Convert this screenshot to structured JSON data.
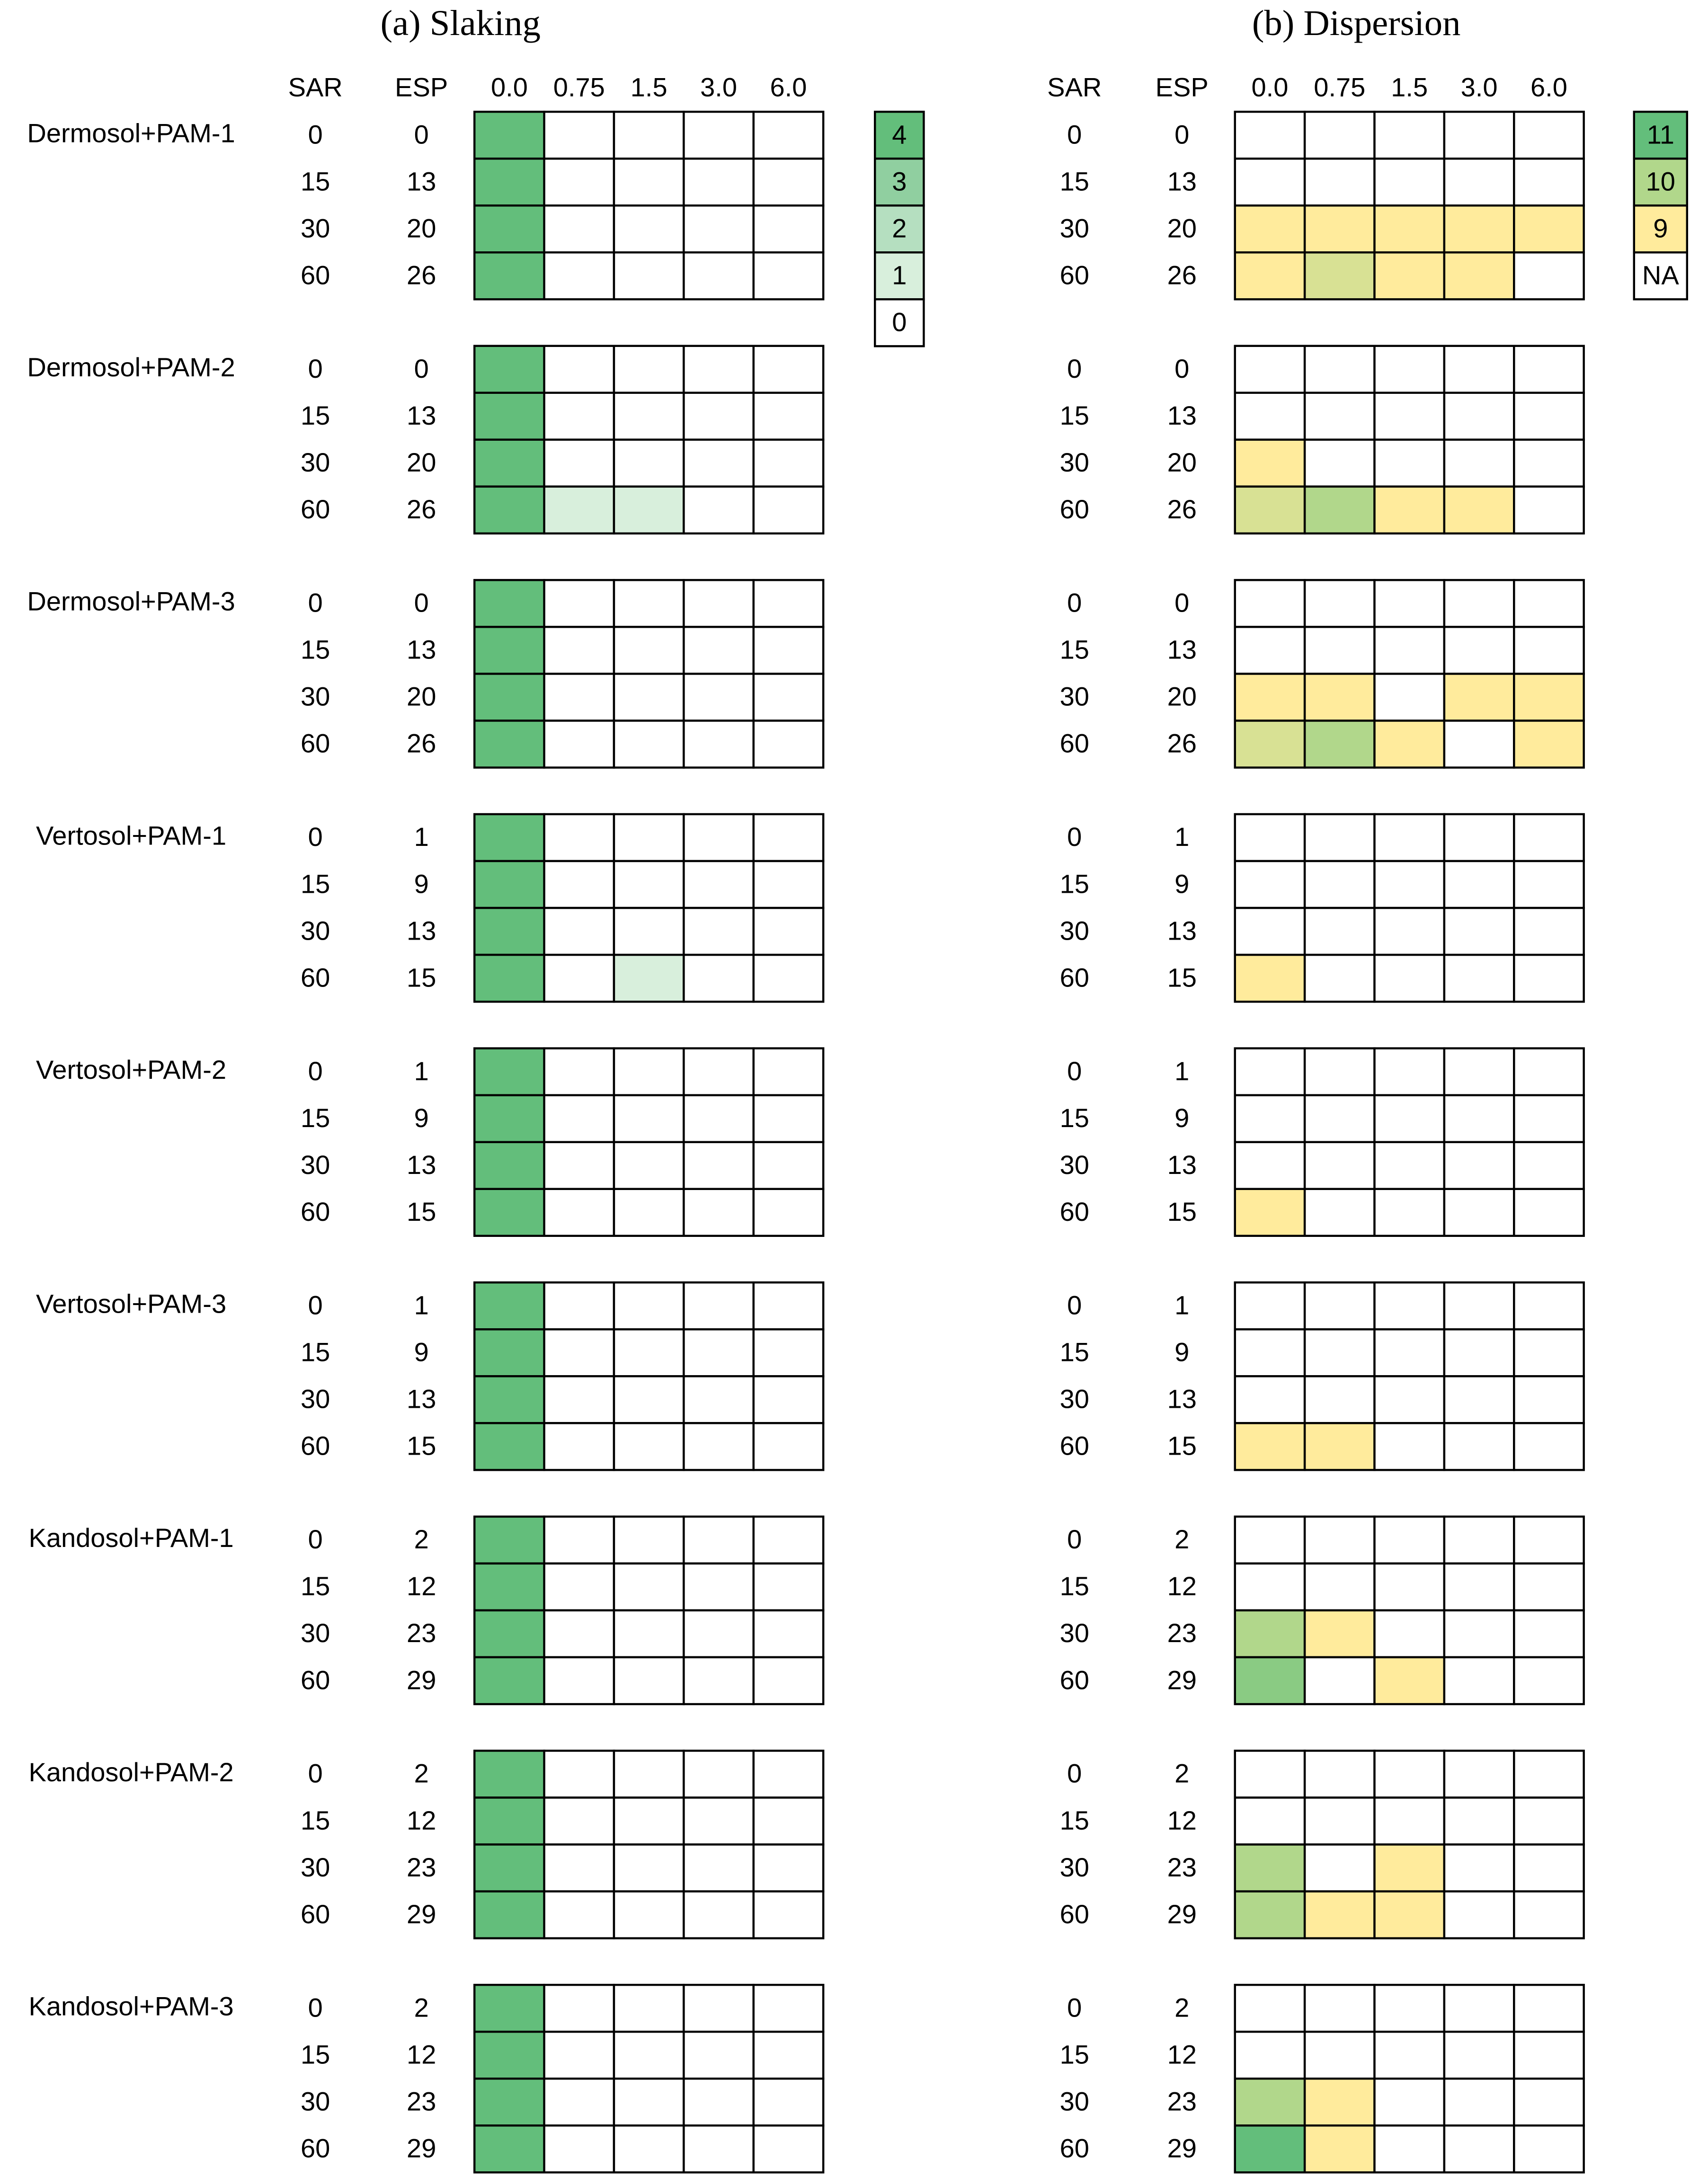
{
  "chart_data": [
    {
      "type": "heatmap",
      "title": "(a) Slaking",
      "row_headers": [
        "SAR",
        "ESP"
      ],
      "categories": [
        "0.0",
        "0.75",
        "1.5",
        "3.0",
        "6.0"
      ],
      "legend": [
        {
          "value": 4,
          "color": "#63be7b"
        },
        {
          "value": 3,
          "color": "#90cfa0"
        },
        {
          "value": 2,
          "color": "#b5dfc0"
        },
        {
          "value": 1,
          "color": "#d8efdc"
        },
        {
          "value": 0,
          "color": "#ffffff"
        }
      ],
      "groups": [
        {
          "name": "Dermosol+PAM-1",
          "sar": [
            0,
            15,
            30,
            60
          ],
          "esp": [
            0,
            13,
            20,
            26
          ],
          "values": [
            [
              4,
              0,
              0,
              0,
              0
            ],
            [
              4,
              0,
              0,
              0,
              0
            ],
            [
              4,
              0,
              0,
              0,
              0
            ],
            [
              4,
              0,
              0,
              0,
              0
            ]
          ]
        },
        {
          "name": "Dermosol+PAM-2",
          "sar": [
            0,
            15,
            30,
            60
          ],
          "esp": [
            0,
            13,
            20,
            26
          ],
          "values": [
            [
              4,
              0,
              0,
              0,
              0
            ],
            [
              4,
              0,
              0,
              0,
              0
            ],
            [
              4,
              0,
              0,
              0,
              0
            ],
            [
              4,
              1,
              1,
              0,
              0
            ]
          ]
        },
        {
          "name": "Dermosol+PAM-3",
          "sar": [
            0,
            15,
            30,
            60
          ],
          "esp": [
            0,
            13,
            20,
            26
          ],
          "values": [
            [
              4,
              0,
              0,
              0,
              0
            ],
            [
              4,
              0,
              0,
              0,
              0
            ],
            [
              4,
              0,
              0,
              0,
              0
            ],
            [
              4,
              0,
              0,
              0,
              0
            ]
          ]
        },
        {
          "name": "Vertosol+PAM-1",
          "sar": [
            0,
            15,
            30,
            60
          ],
          "esp": [
            1,
            9,
            13,
            15
          ],
          "values": [
            [
              4,
              0,
              0,
              0,
              0
            ],
            [
              4,
              0,
              0,
              0,
              0
            ],
            [
              4,
              0,
              0,
              0,
              0
            ],
            [
              4,
              0,
              1,
              0,
              0
            ]
          ]
        },
        {
          "name": "Vertosol+PAM-2",
          "sar": [
            0,
            15,
            30,
            60
          ],
          "esp": [
            1,
            9,
            13,
            15
          ],
          "values": [
            [
              4,
              0,
              0,
              0,
              0
            ],
            [
              4,
              0,
              0,
              0,
              0
            ],
            [
              4,
              0,
              0,
              0,
              0
            ],
            [
              4,
              0,
              0,
              0,
              0
            ]
          ]
        },
        {
          "name": "Vertosol+PAM-3",
          "sar": [
            0,
            15,
            30,
            60
          ],
          "esp": [
            1,
            9,
            13,
            15
          ],
          "values": [
            [
              4,
              0,
              0,
              0,
              0
            ],
            [
              4,
              0,
              0,
              0,
              0
            ],
            [
              4,
              0,
              0,
              0,
              0
            ],
            [
              4,
              0,
              0,
              0,
              0
            ]
          ]
        },
        {
          "name": "Kandosol+PAM-1",
          "sar": [
            0,
            15,
            30,
            60
          ],
          "esp": [
            2,
            12,
            23,
            29
          ],
          "values": [
            [
              4,
              0,
              0,
              0,
              0
            ],
            [
              4,
              0,
              0,
              0,
              0
            ],
            [
              4,
              0,
              0,
              0,
              0
            ],
            [
              4,
              0,
              0,
              0,
              0
            ]
          ]
        },
        {
          "name": "Kandosol+PAM-2",
          "sar": [
            0,
            15,
            30,
            60
          ],
          "esp": [
            2,
            12,
            23,
            29
          ],
          "values": [
            [
              4,
              0,
              0,
              0,
              0
            ],
            [
              4,
              0,
              0,
              0,
              0
            ],
            [
              4,
              0,
              0,
              0,
              0
            ],
            [
              4,
              0,
              0,
              0,
              0
            ]
          ]
        },
        {
          "name": "Kandosol+PAM-3",
          "sar": [
            0,
            15,
            30,
            60
          ],
          "esp": [
            2,
            12,
            23,
            29
          ],
          "values": [
            [
              4,
              0,
              0,
              0,
              0
            ],
            [
              4,
              0,
              0,
              0,
              0
            ],
            [
              4,
              0,
              0,
              0,
              0
            ],
            [
              4,
              0,
              0,
              0,
              0
            ]
          ]
        }
      ]
    },
    {
      "type": "heatmap",
      "title": "(b) Dispersion",
      "row_headers": [
        "SAR",
        "ESP"
      ],
      "categories": [
        "0.0",
        "0.75",
        "1.5",
        "3.0",
        "6.0"
      ],
      "legend": [
        {
          "value": 11,
          "color": "#63be7b"
        },
        {
          "value": 10,
          "color": "#b1d78b"
        },
        {
          "value": 9,
          "color": "#ffeb9c"
        },
        {
          "label": "NA",
          "color": "#ffffff"
        }
      ],
      "groups": [
        {
          "sar": [
            0,
            15,
            30,
            60
          ],
          "esp": [
            0,
            13,
            20,
            26
          ],
          "values": [
            [
              null,
              null,
              null,
              null,
              null
            ],
            [
              null,
              null,
              null,
              null,
              null
            ],
            [
              9,
              9,
              9,
              9,
              9
            ],
            [
              9,
              9.5,
              9,
              9,
              null
            ]
          ]
        },
        {
          "sar": [
            0,
            15,
            30,
            60
          ],
          "esp": [
            0,
            13,
            20,
            26
          ],
          "values": [
            [
              null,
              null,
              null,
              null,
              null
            ],
            [
              null,
              null,
              null,
              null,
              null
            ],
            [
              9,
              null,
              null,
              null,
              null
            ],
            [
              9.5,
              10,
              9,
              9,
              null
            ]
          ]
        },
        {
          "sar": [
            0,
            15,
            30,
            60
          ],
          "esp": [
            0,
            13,
            20,
            26
          ],
          "values": [
            [
              null,
              null,
              null,
              null,
              null
            ],
            [
              null,
              null,
              null,
              null,
              null
            ],
            [
              9,
              9,
              null,
              9,
              9
            ],
            [
              9.5,
              10,
              9,
              null,
              9
            ]
          ]
        },
        {
          "sar": [
            0,
            15,
            30,
            60
          ],
          "esp": [
            1,
            9,
            13,
            15
          ],
          "values": [
            [
              null,
              null,
              null,
              null,
              null
            ],
            [
              null,
              null,
              null,
              null,
              null
            ],
            [
              null,
              null,
              null,
              null,
              null
            ],
            [
              9,
              null,
              null,
              null,
              null
            ]
          ]
        },
        {
          "sar": [
            0,
            15,
            30,
            60
          ],
          "esp": [
            1,
            9,
            13,
            15
          ],
          "values": [
            [
              null,
              null,
              null,
              null,
              null
            ],
            [
              null,
              null,
              null,
              null,
              null
            ],
            [
              null,
              null,
              null,
              null,
              null
            ],
            [
              9,
              null,
              null,
              null,
              null
            ]
          ]
        },
        {
          "sar": [
            0,
            15,
            30,
            60
          ],
          "esp": [
            1,
            9,
            13,
            15
          ],
          "values": [
            [
              null,
              null,
              null,
              null,
              null
            ],
            [
              null,
              null,
              null,
              null,
              null
            ],
            [
              null,
              null,
              null,
              null,
              null
            ],
            [
              9,
              9,
              null,
              null,
              null
            ]
          ]
        },
        {
          "sar": [
            0,
            15,
            30,
            60
          ],
          "esp": [
            2,
            12,
            23,
            29
          ],
          "values": [
            [
              null,
              null,
              null,
              null,
              null
            ],
            [
              null,
              null,
              null,
              null,
              null
            ],
            [
              10,
              9,
              null,
              null,
              null
            ],
            [
              10.5,
              null,
              9,
              null,
              null
            ]
          ]
        },
        {
          "sar": [
            0,
            15,
            30,
            60
          ],
          "esp": [
            2,
            12,
            23,
            29
          ],
          "values": [
            [
              null,
              null,
              null,
              null,
              null
            ],
            [
              null,
              null,
              null,
              null,
              null
            ],
            [
              10,
              null,
              9,
              null,
              null
            ],
            [
              10,
              9,
              9,
              null,
              null
            ]
          ]
        },
        {
          "sar": [
            0,
            15,
            30,
            60
          ],
          "esp": [
            2,
            12,
            23,
            29
          ],
          "values": [
            [
              null,
              null,
              null,
              null,
              null
            ],
            [
              null,
              null,
              null,
              null,
              null
            ],
            [
              10,
              9,
              null,
              null,
              null
            ],
            [
              11,
              9,
              null,
              null,
              null
            ]
          ]
        }
      ]
    }
  ]
}
